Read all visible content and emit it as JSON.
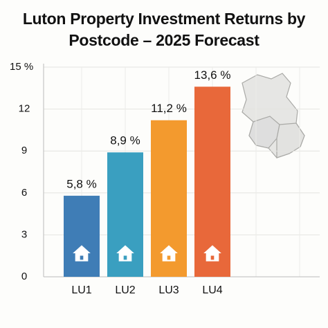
{
  "chart_data": {
    "type": "bar",
    "title": "Luton Property Investment Returns by Postcode – 2025 Forecast",
    "categories": [
      "LU1",
      "LU2",
      "LU3",
      "LU4"
    ],
    "values": [
      5.8,
      8.9,
      11.2,
      13.6
    ],
    "value_labels": [
      "5,8 %",
      "8,9 %",
      "11,2 %",
      "13,6 %"
    ],
    "colors": [
      "#3f7db6",
      "#3a9fc0",
      "#f39a2e",
      "#e8683a"
    ],
    "ylim": [
      0,
      15
    ],
    "yticks": [
      0,
      3,
      6,
      9,
      12,
      {
        "value": 15,
        "label": "15 %"
      }
    ],
    "grid": true
  }
}
